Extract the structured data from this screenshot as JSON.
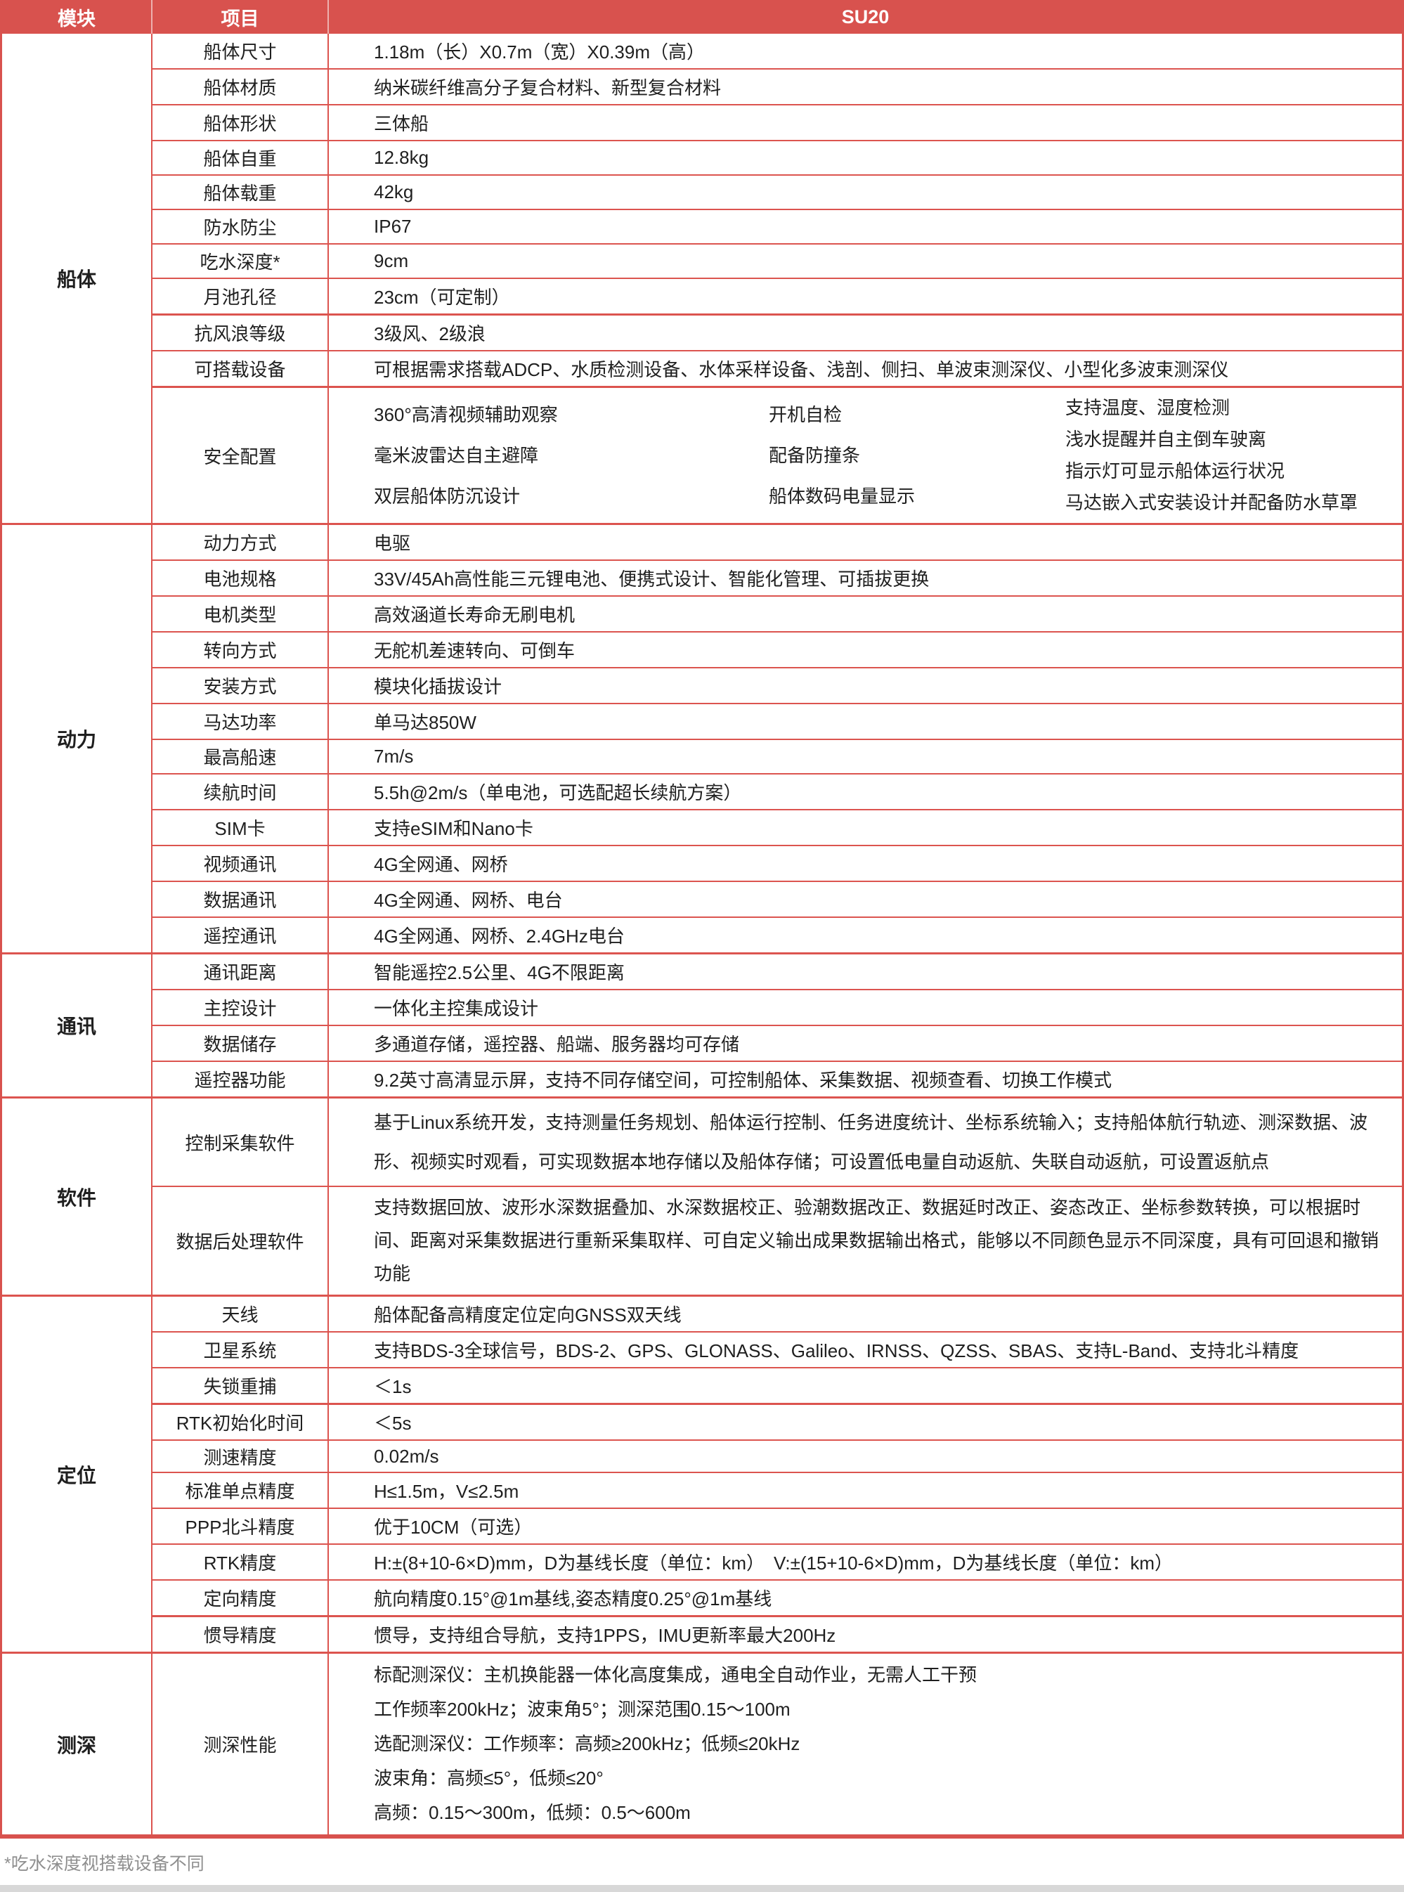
{
  "colors": {
    "accent_red": "#D8524E",
    "grid_line_red": "#DC544F",
    "body_text": "#1F1F1F",
    "header_text": "#FFFFFF",
    "footnote_grey": "#8F8F8F",
    "bottom_bar_grey": "#D8D8D8"
  },
  "header": {
    "module_col": "模块",
    "item_col": "项目",
    "product_col": "SU20"
  },
  "footnote": "*吃水深度视搭载设备不同",
  "sections": [
    {
      "module": "船体",
      "rows": [
        {
          "item": "船体尺寸",
          "value": "1.18m（长）X0.7m（宽）X0.39m（高）"
        },
        {
          "item": "船体材质",
          "value": "纳米碳纤维高分子复合材料、新型复合材料"
        },
        {
          "item": "船体形状",
          "value": "三体船"
        },
        {
          "item": "船体自重",
          "value": "12.8kg"
        },
        {
          "item": "船体载重",
          "value": "42kg"
        },
        {
          "item": "防水防尘",
          "value": "IP67"
        },
        {
          "item": "吃水深度*",
          "value": "9cm"
        },
        {
          "item": "月池孔径",
          "value": "23cm（可定制）"
        },
        {
          "item": "抗风浪等级",
          "value": "3级风、2级浪"
        },
        {
          "item": "可搭载设备",
          "value": "可根据需求搭载ADCP、水质检测设备、水体采样设备、浅剖、侧扫、单波束测深仪、小型化多波束测深仪"
        },
        {
          "item": "安全配置",
          "cols": [
            [
              "360°高清视频辅助观察",
              "毫米波雷达自主避障",
              "双层船体防沉设计"
            ],
            [
              "开机自检",
              "配备防撞条",
              "船体数码电量显示"
            ],
            [
              "支持温度、湿度检测",
              "浅水提醒并自主倒车驶离",
              "指示灯可显示船体运行状况",
              "马达嵌入式安装设计并配备防水草罩"
            ]
          ]
        }
      ]
    },
    {
      "module": "动力",
      "rows": [
        {
          "item": "动力方式",
          "value": "电驱"
        },
        {
          "item": "电池规格",
          "value": "33V/45Ah高性能三元锂电池、便携式设计、智能化管理、可插拔更换"
        },
        {
          "item": "电机类型",
          "value": "高效涵道长寿命无刷电机"
        },
        {
          "item": "转向方式",
          "value": "无舵机差速转向、可倒车"
        },
        {
          "item": "安装方式",
          "value": "模块化插拔设计"
        },
        {
          "item": "马达功率",
          "value": "单马达850W"
        },
        {
          "item": "最高船速",
          "value": "7m/s"
        },
        {
          "item": "续航时间",
          "value": "5.5h@2m/s（单电池，可选配超长续航方案）"
        },
        {
          "item": "SIM卡",
          "value": "支持eSIM和Nano卡"
        },
        {
          "item": "视频通讯",
          "value": "4G全网通、网桥"
        },
        {
          "item": "数据通讯",
          "value": "4G全网通、网桥、电台"
        },
        {
          "item": "遥控通讯",
          "value": "4G全网通、网桥、2.4GHz电台"
        }
      ]
    },
    {
      "module": "通讯",
      "rows": [
        {
          "item": "通讯距离",
          "value": "智能遥控2.5公里、4G不限距离"
        },
        {
          "item": "主控设计",
          "value": "一体化主控集成设计"
        },
        {
          "item": "数据储存",
          "value": "多通道存储，遥控器、船端、服务器均可存储"
        },
        {
          "item": "遥控器功能",
          "value": "9.2英寸高清显示屏，支持不同存储空间，可控制船体、采集数据、视频查看、切换工作模式"
        }
      ]
    },
    {
      "module": "软件",
      "rows": [
        {
          "item": "控制采集软件",
          "value": "基于Linux系统开发，支持测量任务规划、船体运行控制、任务进度统计、坐标系统输入；支持船体航行轨迹、测深数据、波形、视频实时观看，可实现数据本地存储以及船体存储；可设置低电量自动返航、失联自动返航，可设置返航点"
        },
        {
          "item": "数据后处理软件",
          "value": "支持数据回放、波形水深数据叠加、水深数据校正、验潮数据改正、数据延时改正、姿态改正、坐标参数转换，可以根据时间、距离对采集数据进行重新采集取样、可自定义输出成果数据输出格式，能够以不同颜色显示不同深度，具有可回退和撤销功能"
        }
      ]
    },
    {
      "module": "定位",
      "rows": [
        {
          "item": "天线",
          "value": "船体配备高精度定位定向GNSS双天线"
        },
        {
          "item": "卫星系统",
          "value": "支持BDS-3全球信号，BDS-2、GPS、GLONASS、Galileo、IRNSS、QZSS、SBAS、支持L-Band、支持北斗精度"
        },
        {
          "item": "失锁重捕",
          "value": "＜1s"
        },
        {
          "item": "RTK初始化时间",
          "value": "＜5s"
        },
        {
          "item": "测速精度",
          "value": "0.02m/s"
        },
        {
          "item": "标准单点精度",
          "value": "H≤1.5m，V≤2.5m"
        },
        {
          "item": "PPP北斗精度",
          "value": "优于10CM（可选）"
        },
        {
          "item": "RTK精度",
          "value": "H:±(8+10-6×D)mm，D为基线长度（单位：km）　V:±(15+10-6×D)mm，D为基线长度（单位：km）"
        },
        {
          "item": "定向精度",
          "value": "航向精度0.15°@1m基线,姿态精度0.25°@1m基线"
        },
        {
          "item": "惯导精度",
          "value": "惯导，支持组合导航，支持1PPS，IMU更新率最大200Hz"
        }
      ]
    },
    {
      "module": "测深",
      "rows": [
        {
          "item": "测深性能",
          "lines": [
            "标配测深仪：主机换能器一体化高度集成，通电全自动作业，无需人工干预",
            "工作频率200kHz；波束角5°；测深范围0.15～100m",
            "选配测深仪：工作频率：高频≥200kHz；低频≤20kHz",
            "波束角：高频≤5°，低频≤20°",
            "高频：0.15～300m，低频：0.5～600m"
          ]
        }
      ]
    }
  ]
}
